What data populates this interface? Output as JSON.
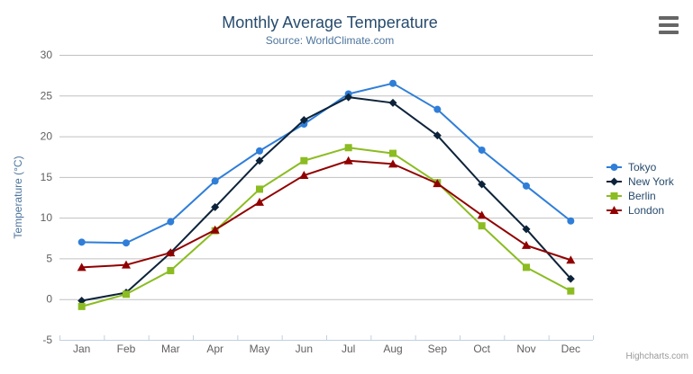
{
  "ui": {
    "export_menu_icon": "hamburger-menu",
    "credits": "Highcharts.com"
  },
  "chart_data": {
    "type": "line",
    "title": "Monthly Average Temperature",
    "subtitle": "Source: WorldClimate.com",
    "xlabel": "",
    "ylabel": "Temperature (°C)",
    "categories": [
      "Jan",
      "Feb",
      "Mar",
      "Apr",
      "May",
      "Jun",
      "Jul",
      "Aug",
      "Sep",
      "Oct",
      "Nov",
      "Dec"
    ],
    "ylim": [
      -5,
      30
    ],
    "yticks": [
      -5,
      0,
      5,
      10,
      15,
      20,
      25,
      30
    ],
    "grid": true,
    "legend_position": "right",
    "series": [
      {
        "name": "Tokyo",
        "color": "#2f7ed8",
        "marker": "circle",
        "values": [
          7.0,
          6.9,
          9.5,
          14.5,
          18.2,
          21.5,
          25.2,
          26.5,
          23.3,
          18.3,
          13.9,
          9.6
        ]
      },
      {
        "name": "New York",
        "color": "#0d233a",
        "marker": "diamond",
        "values": [
          -0.2,
          0.8,
          5.7,
          11.3,
          17.0,
          22.0,
          24.8,
          24.1,
          20.1,
          14.1,
          8.6,
          2.5
        ]
      },
      {
        "name": "Berlin",
        "color": "#8bbc21",
        "marker": "square",
        "values": [
          -0.9,
          0.6,
          3.5,
          8.4,
          13.5,
          17.0,
          18.6,
          17.9,
          14.3,
          9.0,
          3.9,
          1.0
        ]
      },
      {
        "name": "London",
        "color": "#910000",
        "marker": "triangle",
        "values": [
          3.9,
          4.2,
          5.7,
          8.5,
          11.9,
          15.2,
          17.0,
          16.6,
          14.2,
          10.3,
          6.6,
          4.8
        ]
      }
    ]
  },
  "colors": {
    "background": "#ffffff",
    "title_color": "#274b6d",
    "subtitle_color": "#4d759e",
    "axis_title_color": "#4d759e",
    "axis_labels_color": "#606060",
    "gridline": "#c0c0c0",
    "axis_line": "#c0d0e0",
    "legend_text_color": "#274b6d",
    "credits_color": "#999999",
    "menu_icon_color": "#666666"
  }
}
